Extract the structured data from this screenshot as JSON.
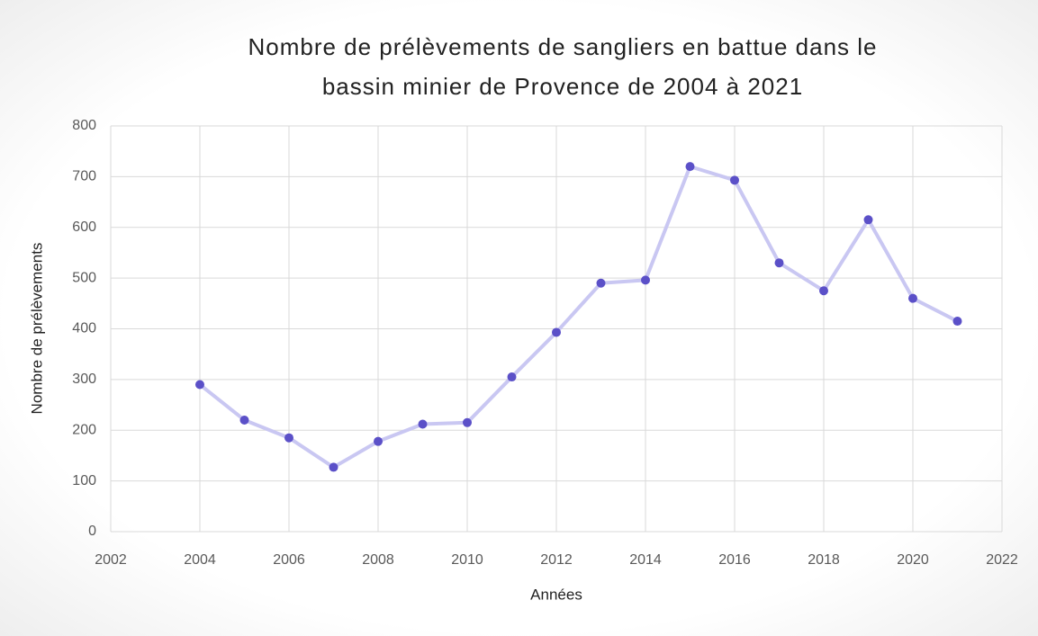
{
  "chart_data": {
    "type": "scatter",
    "title": "Nombre de prélèvements de sangliers en battue dans le\nbassin minier de Provence de 2004 à 2021",
    "x_label": "Années",
    "y_label": "Nombre de prélèvements",
    "x": [
      2004,
      2005,
      2006,
      2007,
      2008,
      2009,
      2010,
      2011,
      2012,
      2013,
      2014,
      2015,
      2016,
      2017,
      2018,
      2019,
      2020,
      2021
    ],
    "values": [
      290,
      220,
      185,
      127,
      178,
      212,
      215,
      305,
      393,
      490,
      496,
      720,
      693,
      530,
      475,
      615,
      460,
      415
    ],
    "color": "#5b50c8",
    "line_color": "#c9c7f2",
    "xlim": [
      2002,
      2022
    ],
    "xticks": [
      2002,
      2004,
      2006,
      2008,
      2010,
      2012,
      2014,
      2016,
      2018,
      2020,
      2022
    ],
    "ylim": [
      0,
      800
    ],
    "yticks": [
      0,
      100,
      200,
      300,
      400,
      500,
      600,
      700,
      800
    ],
    "grid": true
  }
}
